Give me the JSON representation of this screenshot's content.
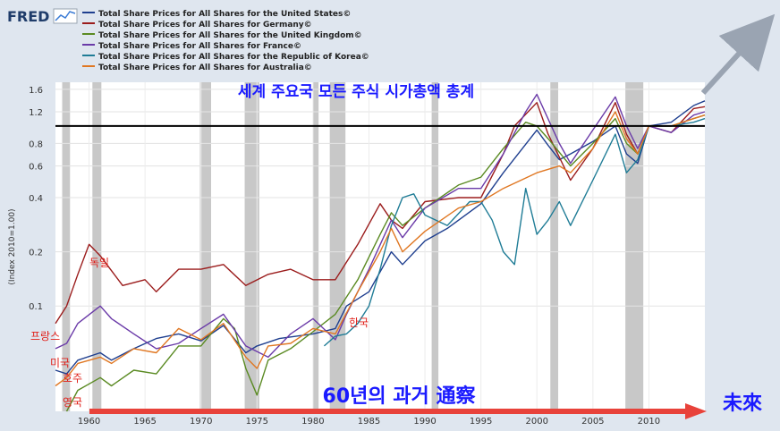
{
  "brand": {
    "name": "FRED"
  },
  "legend_items": [
    {
      "label": "Total Share Prices for All Shares for the United States©",
      "color": "#1f3f8f"
    },
    {
      "label": "Total Share Prices for All Shares for Germany©",
      "color": "#9b1c1c"
    },
    {
      "label": "Total Share Prices for All Shares for the United Kingdom©",
      "color": "#5a8a22"
    },
    {
      "label": "Total Share Prices for All Shares for France©",
      "color": "#6a3aa8"
    },
    {
      "label": "Total Share Prices for All Shares for the Republic of Korea©",
      "color": "#1f7c96"
    },
    {
      "label": "Total Share Prices for All Shares for Australia©",
      "color": "#e07722"
    }
  ],
  "annotations": {
    "title_kr": "세계 주요국 모든 주식 시가총액 총계",
    "bottom_kr": "60년의 과거 通察",
    "future": "未來",
    "germany": "독일",
    "france": "프랑스",
    "usa": "미국",
    "australia": "호주",
    "uk": "영국",
    "korea": "한국"
  },
  "chart_data": {
    "type": "line",
    "ylabel": "(Index 2010=1.00)",
    "y_scale": "log",
    "ylim": [
      0.026,
      1.75
    ],
    "xlim": [
      1957,
      2015
    ],
    "x_ticks": [
      1960,
      1965,
      1970,
      1975,
      1980,
      1985,
      1990,
      1995,
      2000,
      2005,
      2010
    ],
    "y_ticks": [
      {
        "value": 1.6,
        "label": "1.6"
      },
      {
        "value": 1.2,
        "label": "1.2"
      },
      {
        "value": 0.8,
        "label": "0.8"
      },
      {
        "value": 0.6,
        "label": "0.6"
      },
      {
        "value": 0.4,
        "label": "0.4"
      },
      {
        "value": 0.2,
        "label": "0.2"
      },
      {
        "value": 0.1,
        "label": "0.1"
      }
    ],
    "reference_line": 1.0,
    "recessions": [
      [
        1957.6,
        1958.3
      ],
      [
        1960.3,
        1961.1
      ],
      [
        1969.9,
        1970.9
      ],
      [
        1973.9,
        1975.2
      ],
      [
        1980.0,
        1980.5
      ],
      [
        1981.5,
        1982.9
      ],
      [
        1990.6,
        1991.2
      ],
      [
        2001.2,
        2001.9
      ],
      [
        2007.9,
        2009.5
      ]
    ],
    "series": [
      {
        "name": "Total Share Prices for All Shares for the United States©",
        "color": "#1f3f8f",
        "x": [
          1957,
          1958,
          1959,
          1961,
          1962,
          1964,
          1966,
          1968,
          1970,
          1972,
          1974,
          1975,
          1977,
          1980,
          1982,
          1983,
          1985,
          1987,
          1988,
          1990,
          1992,
          1995,
          1997,
          2000,
          2001,
          2002,
          2003,
          2005,
          2007,
          2008,
          2009,
          2010,
          2012,
          2014,
          2015
        ],
        "y": [
          0.044,
          0.042,
          0.05,
          0.055,
          0.05,
          0.058,
          0.066,
          0.07,
          0.064,
          0.078,
          0.055,
          0.06,
          0.066,
          0.07,
          0.075,
          0.1,
          0.12,
          0.2,
          0.17,
          0.23,
          0.27,
          0.37,
          0.55,
          0.95,
          0.78,
          0.65,
          0.7,
          0.82,
          1.0,
          0.7,
          0.62,
          1.0,
          1.05,
          1.3,
          1.38
        ]
      },
      {
        "name": "Total Share Prices for All Shares for Germany©",
        "color": "#9b1c1c",
        "x": [
          1957,
          1958,
          1959,
          1960,
          1961,
          1963,
          1965,
          1966,
          1968,
          1970,
          1972,
          1974,
          1976,
          1978,
          1980,
          1982,
          1984,
          1986,
          1987,
          1988,
          1990,
          1993,
          1995,
          1997,
          1998,
          2000,
          2001,
          2003,
          2005,
          2007,
          2008,
          2009,
          2010,
          2012,
          2014,
          2015
        ],
        "y": [
          0.08,
          0.1,
          0.15,
          0.22,
          0.19,
          0.13,
          0.14,
          0.12,
          0.16,
          0.16,
          0.17,
          0.13,
          0.15,
          0.16,
          0.14,
          0.14,
          0.22,
          0.37,
          0.3,
          0.27,
          0.38,
          0.4,
          0.4,
          0.7,
          1.0,
          1.35,
          0.9,
          0.5,
          0.75,
          1.35,
          0.9,
          0.7,
          1.0,
          0.92,
          1.25,
          1.28
        ]
      },
      {
        "name": "Total Share Prices for All Shares for the United Kingdom©",
        "color": "#5a8a22",
        "x": [
          1958,
          1959,
          1961,
          1962,
          1964,
          1966,
          1968,
          1970,
          1972,
          1973,
          1974,
          1975,
          1976,
          1978,
          1980,
          1982,
          1984,
          1986,
          1987,
          1988,
          1990,
          1993,
          1995,
          1997,
          1999,
          2000,
          2001,
          2003,
          2005,
          2007,
          2008,
          2009,
          2010,
          2012,
          2014,
          2015
        ],
        "y": [
          0.026,
          0.034,
          0.04,
          0.036,
          0.044,
          0.042,
          0.06,
          0.06,
          0.085,
          0.075,
          0.045,
          0.032,
          0.05,
          0.058,
          0.072,
          0.09,
          0.14,
          0.25,
          0.33,
          0.28,
          0.35,
          0.47,
          0.52,
          0.75,
          1.05,
          1.0,
          0.85,
          0.6,
          0.8,
          1.1,
          0.8,
          0.7,
          1.0,
          1.0,
          1.1,
          1.15
        ]
      },
      {
        "name": "Total Share Prices for All Shares for France©",
        "color": "#6a3aa8",
        "x": [
          1957,
          1958,
          1959,
          1961,
          1962,
          1964,
          1966,
          1968,
          1970,
          1972,
          1974,
          1976,
          1978,
          1980,
          1982,
          1983,
          1985,
          1987,
          1988,
          1990,
          1993,
          1995,
          1997,
          1999,
          2000,
          2002,
          2003,
          2005,
          2007,
          2008,
          2009,
          2010,
          2012,
          2014,
          2015
        ],
        "y": [
          0.058,
          0.062,
          0.08,
          0.1,
          0.085,
          0.07,
          0.058,
          0.062,
          0.075,
          0.09,
          0.06,
          0.052,
          0.07,
          0.085,
          0.065,
          0.09,
          0.16,
          0.3,
          0.24,
          0.35,
          0.45,
          0.45,
          0.7,
          1.2,
          1.5,
          0.8,
          0.62,
          0.95,
          1.45,
          1.0,
          0.75,
          1.0,
          0.92,
          1.15,
          1.2
        ]
      },
      {
        "name": "Total Share Prices for All Shares for the Republic of Korea©",
        "color": "#1f7c96",
        "x": [
          1981,
          1982,
          1983,
          1984,
          1985,
          1986,
          1987,
          1988,
          1989,
          1990,
          1992,
          1994,
          1995,
          1996,
          1997,
          1998,
          1999,
          2000,
          2001,
          2002,
          2003,
          2005,
          2007,
          2008,
          2009,
          2010,
          2012,
          2014,
          2015
        ],
        "y": [
          0.06,
          0.068,
          0.07,
          0.08,
          0.1,
          0.16,
          0.28,
          0.4,
          0.42,
          0.32,
          0.28,
          0.38,
          0.38,
          0.3,
          0.2,
          0.17,
          0.45,
          0.25,
          0.3,
          0.38,
          0.28,
          0.5,
          0.9,
          0.55,
          0.65,
          1.0,
          1.0,
          1.05,
          1.1
        ]
      },
      {
        "name": "Total Share Prices for All Shares for Australia©",
        "color": "#e07722",
        "x": [
          1957,
          1958,
          1959,
          1961,
          1962,
          1964,
          1966,
          1968,
          1970,
          1972,
          1974,
          1975,
          1976,
          1978,
          1980,
          1982,
          1984,
          1986,
          1987,
          1988,
          1990,
          1993,
          1995,
          1997,
          2000,
          2002,
          2003,
          2005,
          2007,
          2008,
          2009,
          2010,
          2012,
          2014,
          2015
        ],
        "y": [
          0.036,
          0.04,
          0.048,
          0.052,
          0.048,
          0.058,
          0.055,
          0.075,
          0.065,
          0.08,
          0.052,
          0.045,
          0.06,
          0.062,
          0.075,
          0.07,
          0.12,
          0.2,
          0.27,
          0.2,
          0.26,
          0.35,
          0.38,
          0.45,
          0.55,
          0.6,
          0.55,
          0.75,
          1.2,
          0.85,
          0.7,
          1.0,
          1.0,
          1.1,
          1.15
        ]
      }
    ]
  }
}
